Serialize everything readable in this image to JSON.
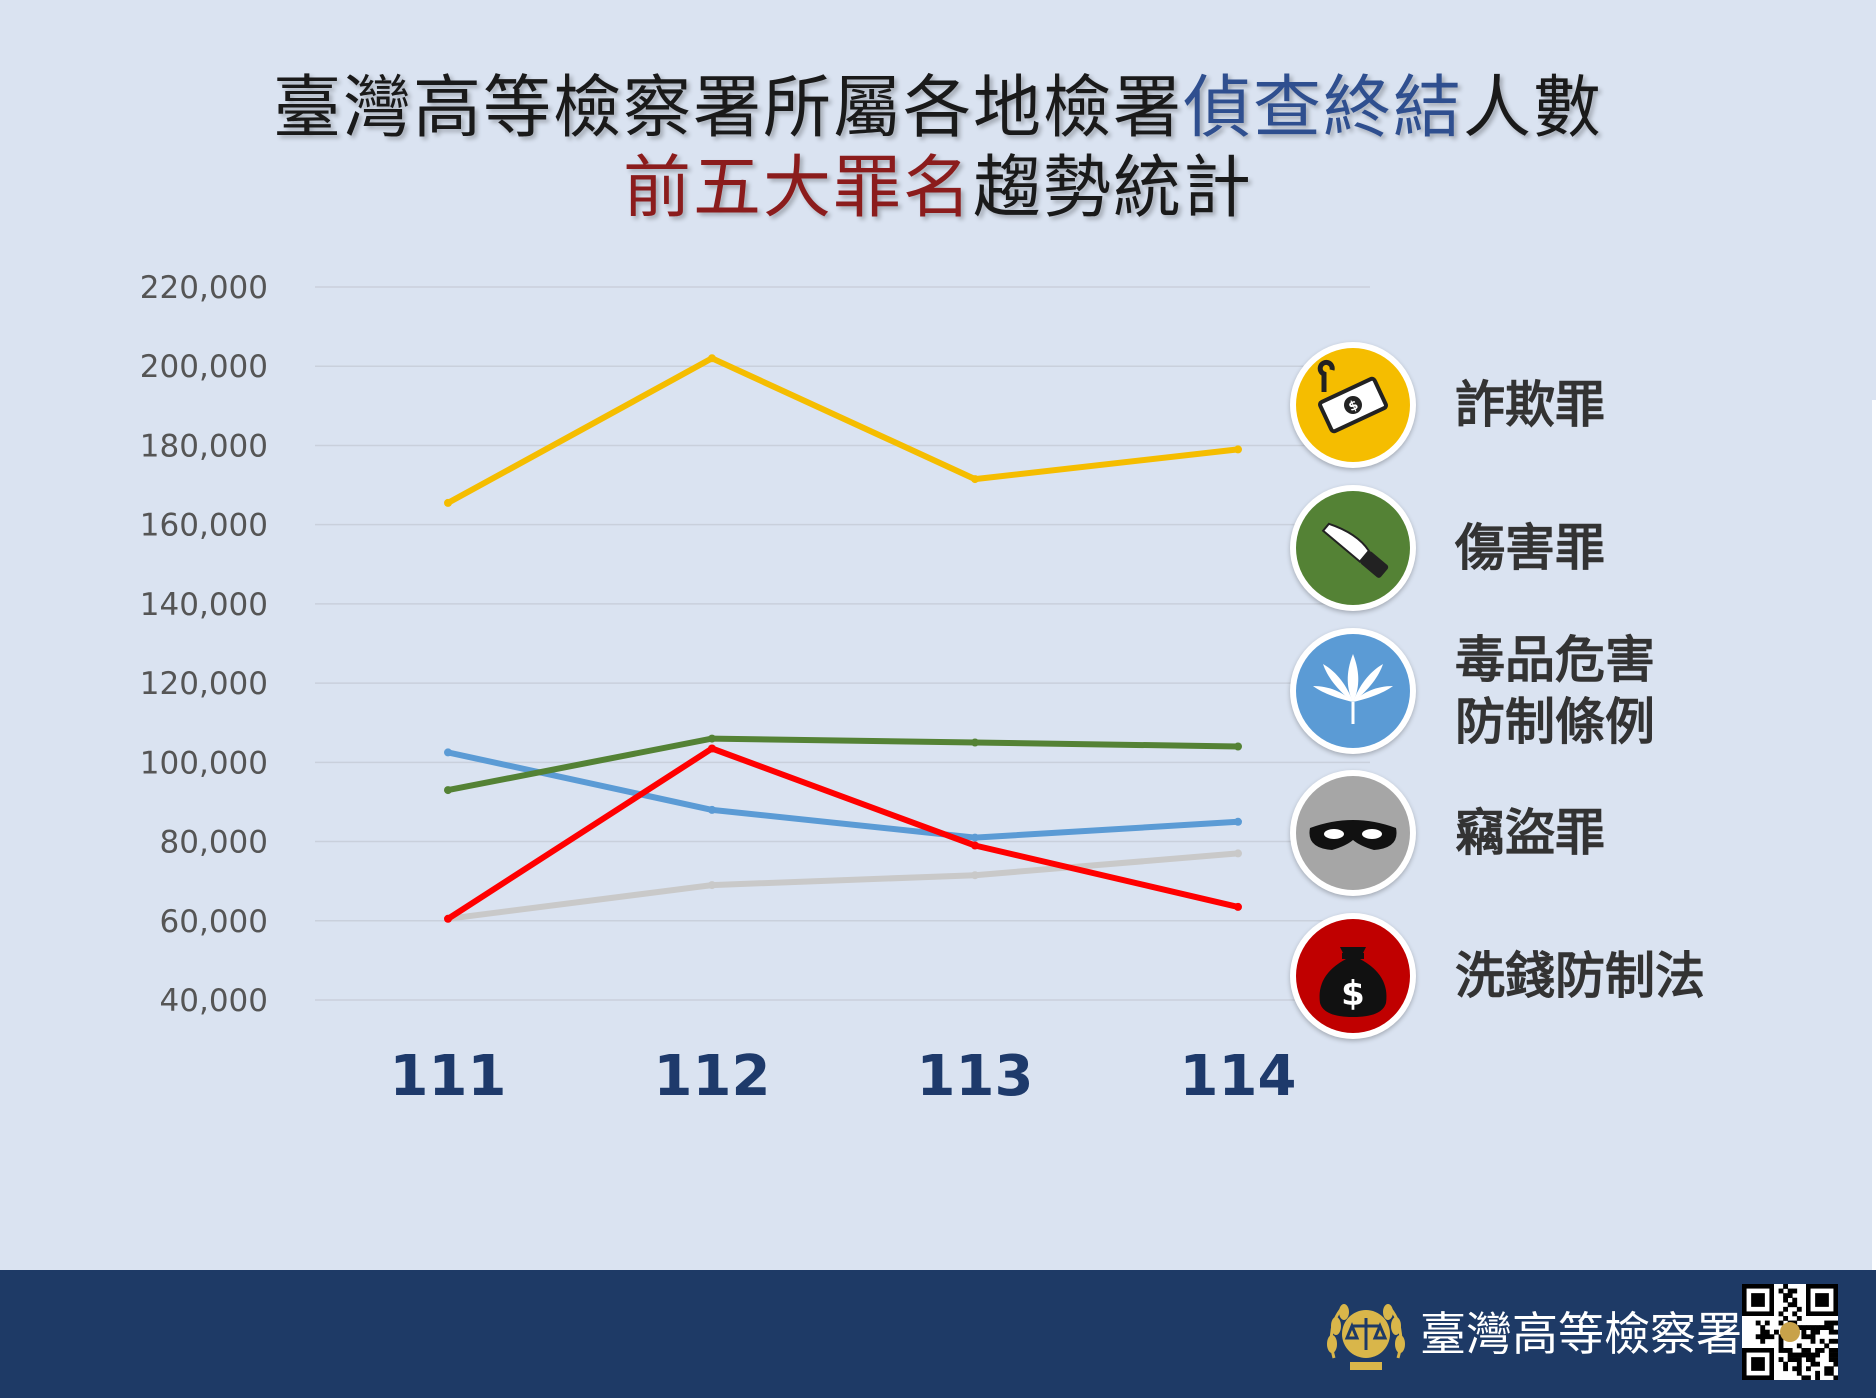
{
  "title": {
    "line1": [
      {
        "text": "臺灣高等檢察署所屬各地檢署",
        "color": "#1a1a1a"
      },
      {
        "text": "偵查終結",
        "color": "#2f4f8f"
      },
      {
        "text": "人數",
        "color": "#1a1a1a"
      }
    ],
    "line2": [
      {
        "text": "前五大罪名",
        "color": "#8b1c1c"
      },
      {
        "text": "趨勢統計",
        "color": "#1a1a1a"
      }
    ]
  },
  "chart_data": {
    "type": "line",
    "categories": [
      "111",
      "112",
      "113",
      "114"
    ],
    "y_ticks": [
      "220,000",
      "200,000",
      "180,000",
      "160,000",
      "140,000",
      "120,000",
      "100,000",
      "80,000",
      "60,000",
      "40,000"
    ],
    "ylim": [
      40000,
      220000
    ],
    "grid": true,
    "legend_position": "right",
    "series": [
      {
        "name": "詐欺罪",
        "color": "#f5bd00",
        "values": [
          165500,
          202000,
          171500,
          179000
        ]
      },
      {
        "name": "傷害罪",
        "color": "#548235",
        "values": [
          93000,
          106000,
          105000,
          104000
        ]
      },
      {
        "name": "毒品危害防制條例",
        "color": "#5b9bd5",
        "values": [
          102500,
          88000,
          81000,
          85000
        ]
      },
      {
        "name": "竊盜罪",
        "color": "#c9c9c9",
        "values": [
          60500,
          69000,
          71500,
          77000
        ]
      },
      {
        "name": "洗錢防制法",
        "color": "#ff0000",
        "values": [
          60500,
          103500,
          79000,
          63500
        ]
      }
    ]
  },
  "legend": [
    {
      "label_lines": [
        "詐欺罪"
      ],
      "icon": "money-hook-icon",
      "icon_bg": "#f5bd00"
    },
    {
      "label_lines": [
        "傷害罪"
      ],
      "icon": "knife-icon",
      "icon_bg": "#548235"
    },
    {
      "label_lines": [
        "毒品危害",
        "防制條例"
      ],
      "icon": "cannabis-leaf-icon",
      "icon_bg": "#5b9bd5"
    },
    {
      "label_lines": [
        "竊盜罪"
      ],
      "icon": "thief-mask-icon",
      "icon_bg": "#a6a6a6"
    },
    {
      "label_lines": [
        "洗錢防制法"
      ],
      "icon": "money-bag-icon",
      "icon_bg": "#c00000"
    }
  ],
  "footer": {
    "org_name": "臺灣高等檢察署",
    "background": "#1e3a66",
    "emblem_icon": "prosecutor-emblem-icon",
    "qr_icon": "qr-code-icon"
  }
}
